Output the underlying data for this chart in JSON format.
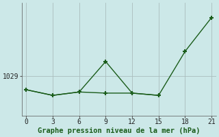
{
  "xlabel": "Graphe pression niveau de la mer (hPa)",
  "background_color": "#cce8e8",
  "grid_color": "#aabcbc",
  "line_color": "#1a5c1a",
  "x_ticks": [
    0,
    3,
    6,
    9,
    12,
    15,
    18,
    21
  ],
  "xlim": [
    -0.5,
    21.5
  ],
  "ylim": [
    1025.5,
    1035.5
  ],
  "y_ticks": [
    1029
  ],
  "line1_x": [
    0,
    3,
    6,
    9,
    12,
    15,
    18,
    21
  ],
  "line1_y": [
    1027.8,
    1027.3,
    1027.6,
    1030.3,
    1027.5,
    1027.3,
    1031.2,
    1034.2
  ],
  "line2_x": [
    0,
    3,
    6,
    9,
    12,
    15
  ],
  "line2_y": [
    1027.8,
    1027.3,
    1027.6,
    1027.5,
    1027.5,
    1027.3
  ]
}
